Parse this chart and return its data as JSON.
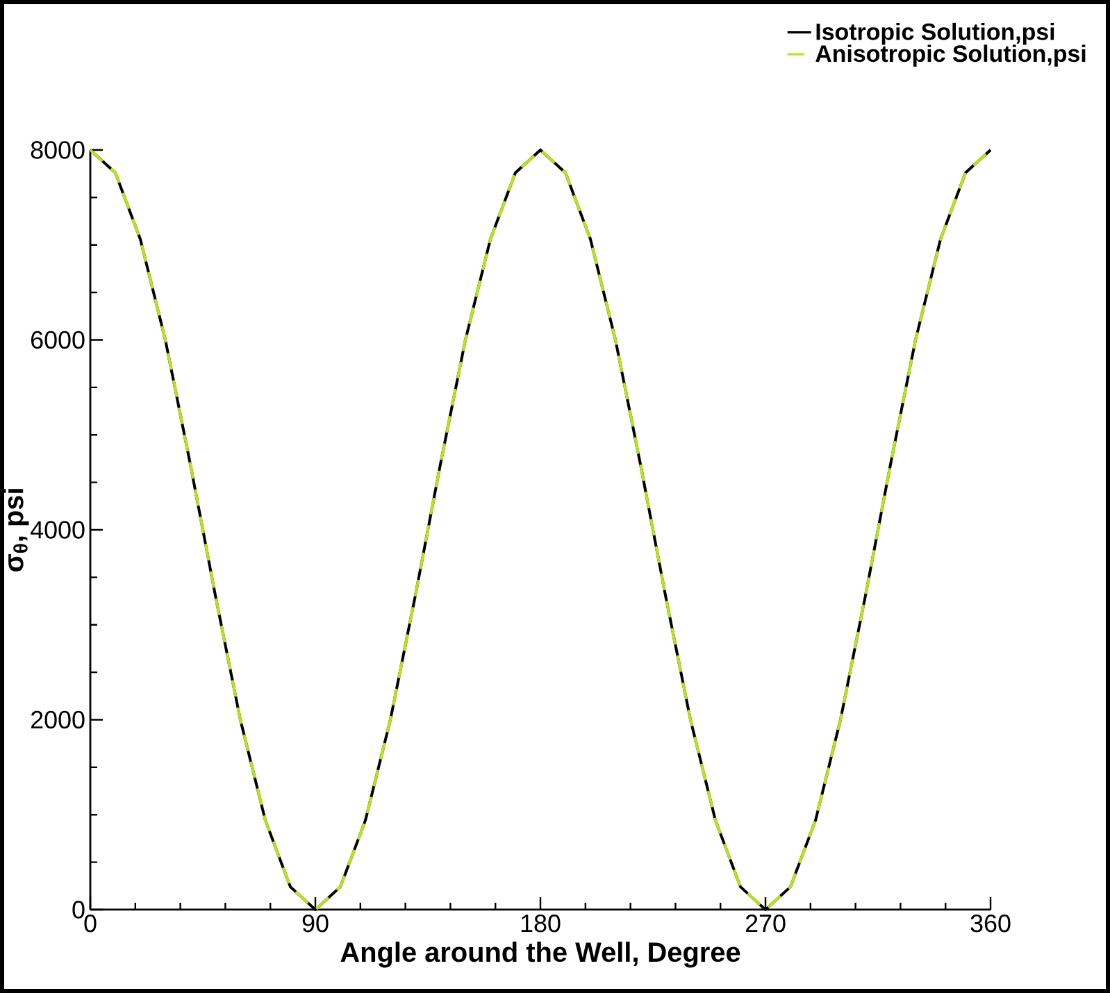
{
  "chart_data": {
    "type": "line",
    "xlabel": "Angle around the Well, Degree",
    "ylabel": "σ$_{θ}$, psi",
    "x": [
      0,
      10,
      20,
      30,
      40,
      50,
      60,
      70,
      80,
      90,
      100,
      110,
      120,
      130,
      140,
      150,
      160,
      170,
      180,
      190,
      200,
      210,
      220,
      230,
      240,
      250,
      260,
      270,
      280,
      290,
      300,
      310,
      320,
      330,
      340,
      350,
      360
    ],
    "series": [
      {
        "name": "Isotropic Solution,psi",
        "color": "#000000",
        "line_style": "solid",
        "values": [
          8000,
          7760,
          7060,
          6000,
          4690,
          3310,
          2000,
          940,
          240,
          0,
          240,
          940,
          2000,
          3310,
          4690,
          6000,
          7060,
          7760,
          8000,
          7760,
          7060,
          6000,
          4690,
          3310,
          2000,
          940,
          240,
          0,
          240,
          940,
          2000,
          3310,
          4690,
          6000,
          7060,
          7760,
          8000
        ]
      },
      {
        "name": "Anisotropic Solution,psi",
        "color": "#b5e61d",
        "line_style": "dashed",
        "values": [
          8000,
          7760,
          7060,
          6000,
          4690,
          3310,
          2000,
          940,
          240,
          0,
          240,
          940,
          2000,
          3310,
          4690,
          6000,
          7060,
          7760,
          8000,
          7760,
          7060,
          6000,
          4690,
          3310,
          2000,
          940,
          240,
          0,
          240,
          940,
          2000,
          3310,
          4690,
          6000,
          7060,
          7760,
          8000
        ]
      }
    ],
    "xlim": [
      0,
      360
    ],
    "xticks": [
      0,
      90,
      180,
      270,
      360
    ],
    "ylim": [
      0,
      8000
    ],
    "yticks": [
      0,
      2000,
      4000,
      6000,
      8000
    ],
    "grid": false,
    "legend": "top right",
    "marker": "none"
  }
}
